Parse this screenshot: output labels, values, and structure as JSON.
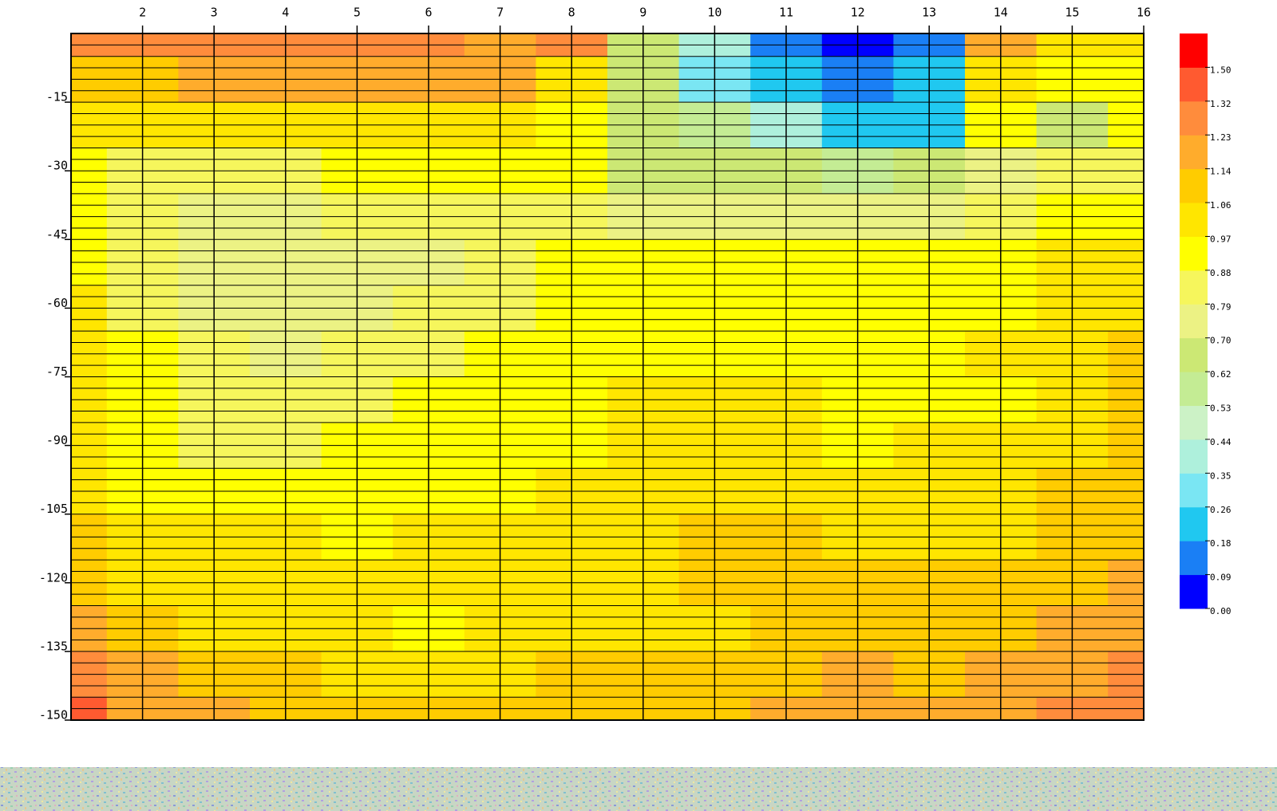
{
  "chart_data": {
    "type": "contour",
    "x": [
      1,
      2,
      3,
      4,
      5,
      6,
      7,
      8,
      9,
      10,
      11,
      12,
      13,
      14,
      15,
      16
    ],
    "y": [
      0,
      -10,
      -20,
      -30,
      -40,
      -50,
      -60,
      -70,
      -80,
      -90,
      -100,
      -110,
      -120,
      -130,
      -140,
      -150
    ],
    "z": [
      [
        1.25,
        1.25,
        1.27,
        1.27,
        1.25,
        1.23,
        1.22,
        1.25,
        0.65,
        0.4,
        0.1,
        0.02,
        0.15,
        1.15,
        1.05,
        1.0
      ],
      [
        1.12,
        1.12,
        1.15,
        1.15,
        1.15,
        1.15,
        1.15,
        1.0,
        0.65,
        0.3,
        0.25,
        0.15,
        0.25,
        1.0,
        0.95,
        0.95
      ],
      [
        1.02,
        1.02,
        1.05,
        1.05,
        1.05,
        1.05,
        1.05,
        0.95,
        0.65,
        0.55,
        0.4,
        0.2,
        0.2,
        0.9,
        0.65,
        0.9
      ],
      [
        0.9,
        0.85,
        0.85,
        0.85,
        0.88,
        0.9,
        0.9,
        0.9,
        0.65,
        0.65,
        0.65,
        0.6,
        0.65,
        0.75,
        0.8,
        0.85
      ],
      [
        0.9,
        0.8,
        0.78,
        0.78,
        0.8,
        0.82,
        0.85,
        0.85,
        0.7,
        0.72,
        0.72,
        0.72,
        0.75,
        0.82,
        0.88,
        0.95
      ],
      [
        0.95,
        0.8,
        0.78,
        0.78,
        0.78,
        0.78,
        0.85,
        0.88,
        0.88,
        0.88,
        0.88,
        0.88,
        0.9,
        0.95,
        0.97,
        1.0
      ],
      [
        1.0,
        0.85,
        0.78,
        0.78,
        0.78,
        0.8,
        0.85,
        0.88,
        0.9,
        0.9,
        0.9,
        0.9,
        0.92,
        0.95,
        1.0,
        1.05
      ],
      [
        1.05,
        0.88,
        0.8,
        0.78,
        0.8,
        0.85,
        0.88,
        0.9,
        0.95,
        0.95,
        0.95,
        0.95,
        0.95,
        0.97,
        1.05,
        1.08
      ],
      [
        1.05,
        0.88,
        0.85,
        0.82,
        0.85,
        0.88,
        0.9,
        0.95,
        0.97,
        1.0,
        1.0,
        0.95,
        0.95,
        0.95,
        1.05,
        1.1
      ],
      [
        1.05,
        0.88,
        0.85,
        0.85,
        0.88,
        0.88,
        0.9,
        0.95,
        1.0,
        1.0,
        1.02,
        0.95,
        0.97,
        1.0,
        1.05,
        1.1
      ],
      [
        1.05,
        0.95,
        0.9,
        0.88,
        0.9,
        0.92,
        0.95,
        0.97,
        1.02,
        1.05,
        1.05,
        1.05,
        1.05,
        1.05,
        1.07,
        1.1
      ],
      [
        1.1,
        1.0,
        0.97,
        0.97,
        0.95,
        0.97,
        0.97,
        1.0,
        1.05,
        1.07,
        1.07,
        1.05,
        1.05,
        1.05,
        1.07,
        1.12
      ],
      [
        1.12,
        1.05,
        1.05,
        1.02,
        0.97,
        1.0,
        1.0,
        1.02,
        1.05,
        1.08,
        1.07,
        1.1,
        1.08,
        1.1,
        1.1,
        1.15
      ],
      [
        1.15,
        1.1,
        1.05,
        1.05,
        1.0,
        0.95,
        1.0,
        1.02,
        1.0,
        1.05,
        1.1,
        1.12,
        1.1,
        1.12,
        1.15,
        1.2
      ],
      [
        1.3,
        1.15,
        1.1,
        1.1,
        1.05,
        1.0,
        1.05,
        1.1,
        1.1,
        1.1,
        1.12,
        1.15,
        1.12,
        1.15,
        1.2,
        1.3
      ],
      [
        1.35,
        1.2,
        1.15,
        1.12,
        1.12,
        1.1,
        1.1,
        1.12,
        1.12,
        1.1,
        1.15,
        1.15,
        1.15,
        1.2,
        1.25,
        1.3
      ]
    ],
    "xlim": [
      1,
      16
    ],
    "ylim": [
      -150,
      0
    ],
    "xticks": [
      2,
      3,
      4,
      5,
      6,
      7,
      8,
      9,
      10,
      11,
      12,
      13,
      14,
      15,
      16
    ],
    "yticks": [
      -15,
      -30,
      -45,
      -60,
      -75,
      -90,
      -105,
      -120,
      -135,
      -150
    ],
    "grid": true,
    "levels": [
      {
        "value": 0,
        "label": "0.00"
      },
      0.09,
      0.18,
      0.26,
      0.35,
      0.44,
      0.53,
      0.62,
      {
        "value": 0.7,
        "label": "0.70"
      },
      0.79,
      0.88,
      0.97,
      1.06,
      1.14,
      1.23,
      1.32,
      {
        "value": 1.5,
        "label": "1.50"
      }
    ],
    "level_colors": [
      "#0000ff",
      "#1a7ff5",
      "#20c8f0",
      "#7ae6f3",
      "#aef0dc",
      "#ccf2c6",
      "#c4ec94",
      "#cce874",
      "#ecf284",
      "#f6f65c",
      "#ffff00",
      "#ffe600",
      "#ffcc00",
      "#ffac2c",
      "#ff8c3c",
      "#ff5a30",
      "#ff0000"
    ]
  }
}
